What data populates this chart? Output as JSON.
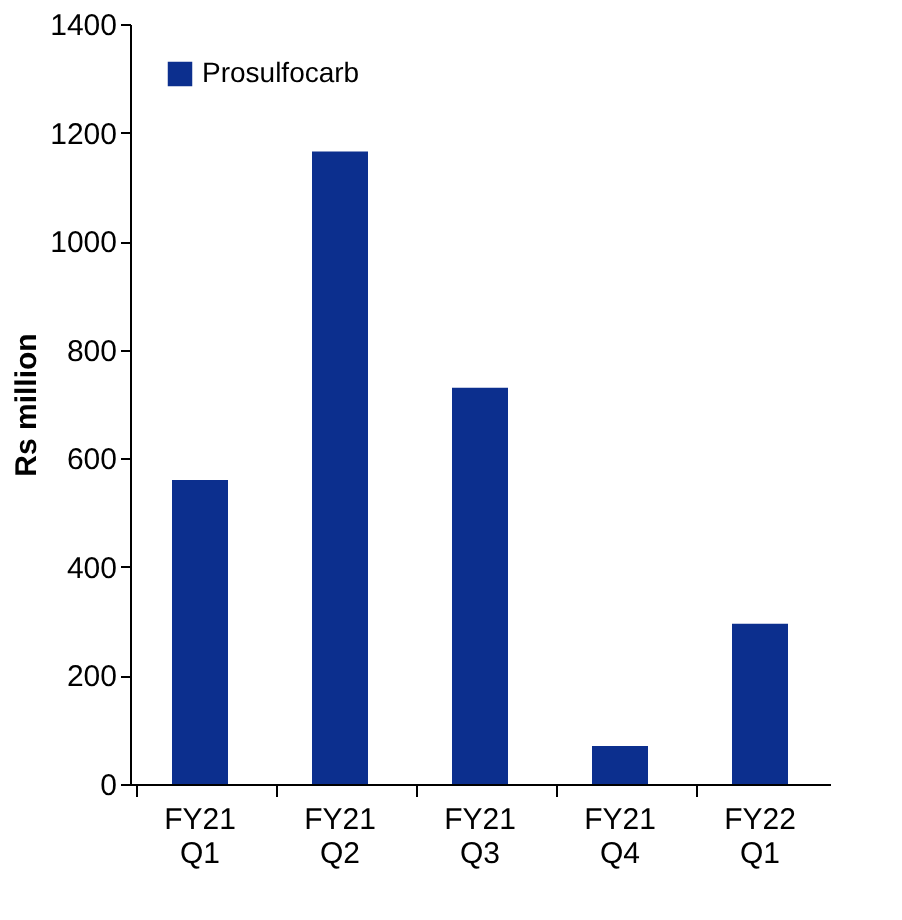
{
  "chart_data": {
    "type": "bar",
    "ylabel": "Rs million",
    "categories": [
      "FY21\nQ1",
      "FY21\nQ2",
      "FY21\nQ3",
      "FY21\nQ4",
      "FY22\nQ1"
    ],
    "series": [
      {
        "name": "Prosulfocarb",
        "color": "#0c2f8e",
        "values": [
          560,
          1165,
          730,
          70,
          295
        ]
      }
    ],
    "ylim": [
      0,
      1400
    ],
    "yticks": [
      0,
      200,
      400,
      600,
      800,
      1000,
      1200,
      1400
    ],
    "grid": false,
    "legend": "top left"
  }
}
